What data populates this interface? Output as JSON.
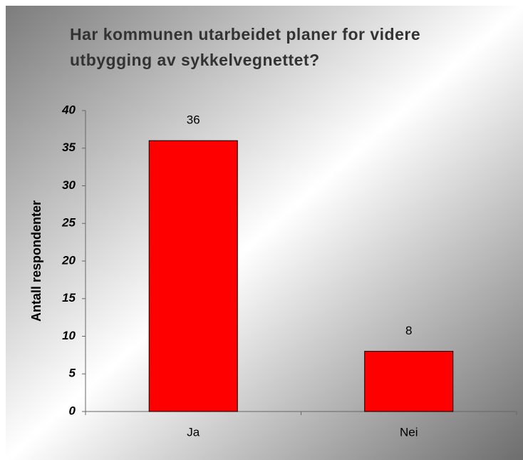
{
  "chart_data": {
    "type": "bar",
    "title": "Har kommunen utarbeidet planer for videre utbygging av sykkelvegnettet?",
    "y_label": "Antall respondenter",
    "categories": [
      "Ja",
      "Nei"
    ],
    "values": [
      36,
      8
    ],
    "color": "#ff0000",
    "ylim": [
      0,
      40
    ],
    "yticks": [
      0,
      5,
      10,
      15,
      20,
      25,
      30,
      35,
      40
    ]
  }
}
